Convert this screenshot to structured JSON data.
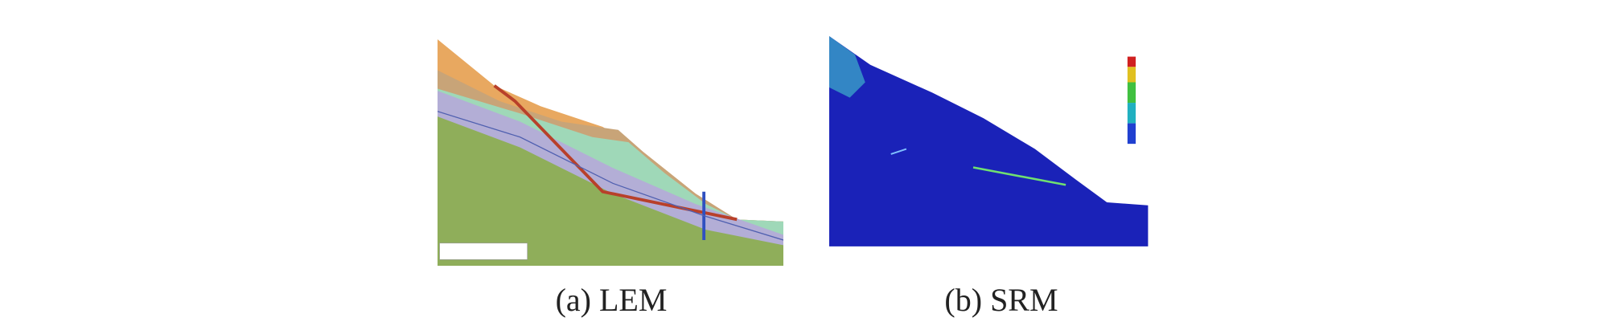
{
  "figures": [
    {
      "caption": "(a) LEM"
    },
    {
      "caption": "(b) SRM"
    }
  ]
}
